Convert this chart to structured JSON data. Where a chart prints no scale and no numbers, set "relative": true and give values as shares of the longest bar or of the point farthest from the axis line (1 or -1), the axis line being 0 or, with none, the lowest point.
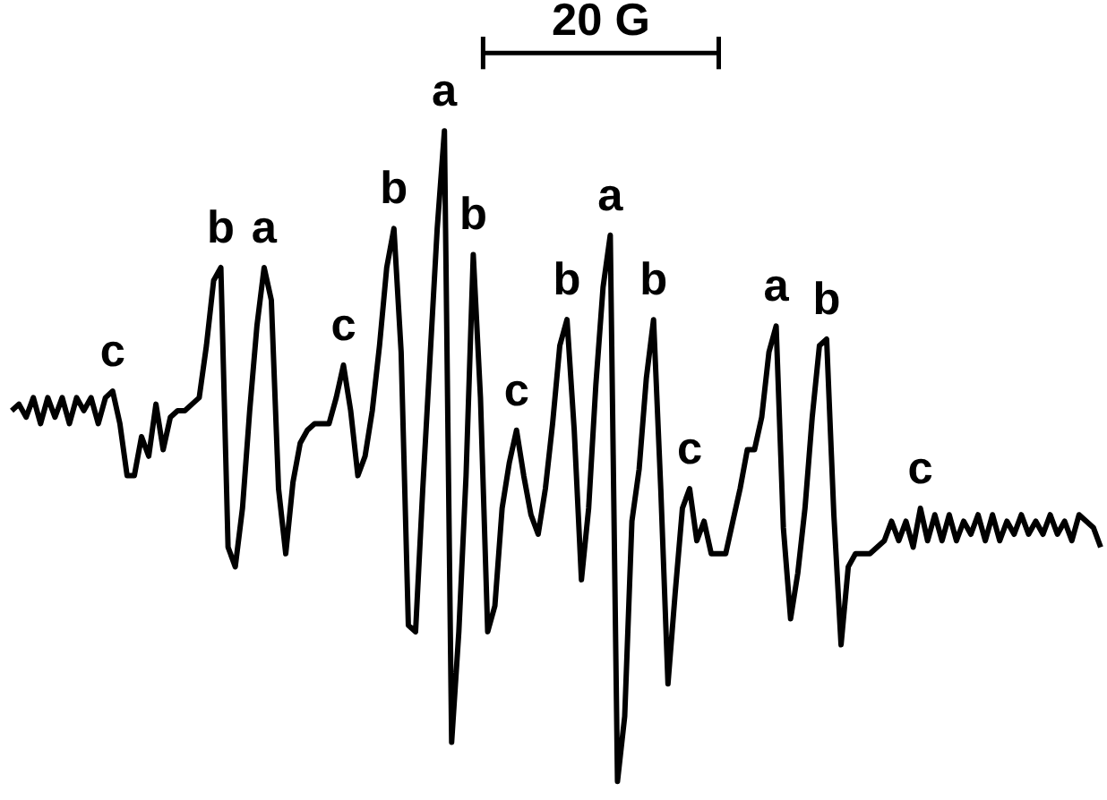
{
  "chart_data": {
    "type": "line",
    "relative": true,
    "tick_labels": false,
    "grid": false,
    "marker": "none",
    "line_style": "solid",
    "categories": [
      null,
      null,
      null,
      null,
      null,
      null,
      null,
      null,
      null,
      null,
      null,
      null,
      null,
      null,
      null,
      null,
      null,
      null,
      null,
      null,
      null,
      null,
      null,
      null,
      null,
      null,
      null,
      null,
      null,
      null,
      null,
      null,
      null,
      null,
      null,
      null,
      null,
      null,
      null,
      null,
      null,
      null,
      null,
      null,
      null,
      null,
      null,
      null,
      null,
      null,
      null,
      null,
      null,
      null,
      null,
      null,
      null,
      null,
      null,
      null,
      null,
      null,
      null,
      null,
      null,
      null,
      null,
      null,
      null,
      null,
      null,
      null,
      null,
      null,
      null,
      null,
      null,
      null,
      null,
      null,
      null,
      null,
      null,
      null,
      null,
      null,
      null,
      null,
      null,
      null,
      null,
      null,
      null,
      null,
      null,
      null,
      null,
      null,
      null,
      null,
      null,
      null,
      null,
      null,
      null,
      null,
      null,
      null,
      null,
      null,
      null,
      null,
      null,
      null,
      null,
      null,
      null,
      null,
      null,
      null,
      null,
      null,
      null,
      null,
      null,
      null,
      null,
      null,
      null,
      null,
      null,
      null,
      null,
      null,
      null,
      null,
      null,
      null,
      null,
      null,
      null,
      null,
      null,
      null,
      null,
      null,
      null,
      null,
      null,
      null,
      null,
      null
    ],
    "series": [
      {
        "color": "#000000",
        "values": [
          0.57,
          0.58,
          0.56,
          0.59,
          0.55,
          0.59,
          0.56,
          0.59,
          0.55,
          0.59,
          0.57,
          0.59,
          0.55,
          0.59,
          0.6,
          0.55,
          0.47,
          0.47,
          0.53,
          0.5,
          0.58,
          0.51,
          0.56,
          0.57,
          0.57,
          0.58,
          0.59,
          0.67,
          0.77,
          0.79,
          0.36,
          0.33,
          0.42,
          0.57,
          0.7,
          0.79,
          0.74,
          0.45,
          0.35,
          0.46,
          0.52,
          0.54,
          0.55,
          0.55,
          0.55,
          0.59,
          0.64,
          0.57,
          0.47,
          0.5,
          0.57,
          0.67,
          0.79,
          0.85,
          0.66,
          0.24,
          0.23,
          0.45,
          0.65,
          0.85,
          1,
          0.06,
          0.23,
          0.47,
          0.81,
          0.59,
          0.23,
          0.27,
          0.42,
          0.49,
          0.54,
          0.47,
          0.41,
          0.38,
          0.45,
          0.55,
          0.67,
          0.71,
          0.54,
          0.31,
          0.42,
          0.61,
          0.76,
          0.84,
          0,
          0.1,
          0.4,
          0.48,
          0.62,
          0.71,
          0.45,
          0.15,
          0.29,
          0.42,
          0.45,
          0.37,
          0.4,
          0.35,
          0.35,
          0.35,
          0.4,
          0.45,
          0.51,
          0.51,
          0.56,
          0.66,
          0.7,
          0.39,
          0.25,
          0.32,
          0.42,
          0.56,
          0.67,
          0.68,
          0.41,
          0.21,
          0.33,
          0.35,
          0.35,
          0.35,
          0.36,
          0.37,
          0.4,
          0.37,
          0.4,
          0.36,
          0.42,
          0.37,
          0.41,
          0.37,
          0.41,
          0.37,
          0.4,
          0.38,
          0.41,
          0.37,
          0.41,
          0.37,
          0.4,
          0.38,
          0.41,
          0.38,
          0.4,
          0.38,
          0.41,
          0.38,
          0.4,
          0.37,
          0.41,
          0.4,
          0.39,
          0.36
        ]
      }
    ],
    "annotations": [
      {
        "text": "c",
        "y": 0.6
      },
      {
        "text": "b",
        "y": 0.79
      },
      {
        "text": "a",
        "y": 0.79
      },
      {
        "text": "c",
        "y": 0.64
      },
      {
        "text": "b",
        "y": 0.85
      },
      {
        "text": "a",
        "y": 1
      },
      {
        "text": "b",
        "y": 0.81
      },
      {
        "text": "c",
        "y": 0.54
      },
      {
        "text": "b",
        "y": 0.71
      },
      {
        "text": "a",
        "y": 0.84
      },
      {
        "text": "b",
        "y": 0.71
      },
      {
        "text": "c",
        "y": 0.45
      },
      {
        "text": "a",
        "y": 0.7
      },
      {
        "text": "b",
        "y": 0.68
      },
      {
        "text": "c",
        "y": 0.42
      },
      "20 G"
    ]
  }
}
